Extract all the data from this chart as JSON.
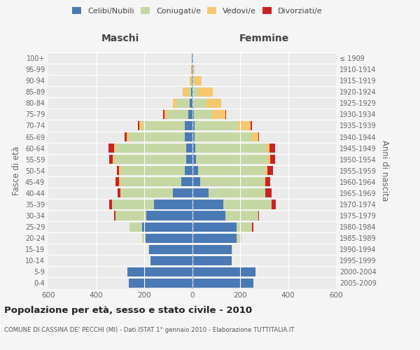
{
  "age_groups": [
    "0-4",
    "5-9",
    "10-14",
    "15-19",
    "20-24",
    "25-29",
    "30-34",
    "35-39",
    "40-44",
    "45-49",
    "50-54",
    "55-59",
    "60-64",
    "65-69",
    "70-74",
    "75-79",
    "80-84",
    "85-89",
    "90-94",
    "95-99",
    "100+"
  ],
  "birth_years": [
    "2005-2009",
    "2000-2004",
    "1995-1999",
    "1990-1994",
    "1985-1989",
    "1980-1984",
    "1975-1979",
    "1970-1974",
    "1965-1969",
    "1960-1964",
    "1955-1959",
    "1950-1954",
    "1945-1949",
    "1940-1944",
    "1935-1939",
    "1930-1934",
    "1925-1929",
    "1920-1924",
    "1915-1919",
    "1910-1914",
    "≤ 1909"
  ],
  "colors": {
    "celibi": "#4a7ab5",
    "coniugati": "#c5d8a4",
    "vedovi": "#f5c86e",
    "divorziati": "#cc2222"
  },
  "maschi": {
    "celibi": [
      265,
      270,
      175,
      180,
      195,
      210,
      190,
      160,
      80,
      45,
      30,
      25,
      25,
      30,
      30,
      15,
      10,
      3,
      2,
      2,
      2
    ],
    "coniugati": [
      0,
      0,
      0,
      2,
      15,
      50,
      130,
      175,
      220,
      255,
      270,
      300,
      295,
      235,
      175,
      90,
      55,
      10,
      3,
      0,
      0
    ],
    "vedovi": [
      0,
      0,
      0,
      0,
      0,
      0,
      0,
      0,
      0,
      5,
      5,
      5,
      5,
      8,
      15,
      10,
      15,
      25,
      5,
      2,
      0
    ],
    "divorziati": [
      0,
      0,
      0,
      0,
      0,
      0,
      5,
      10,
      10,
      15,
      10,
      15,
      25,
      10,
      5,
      5,
      0,
      0,
      0,
      0,
      0
    ]
  },
  "femmine": {
    "celibi": [
      255,
      265,
      165,
      165,
      185,
      185,
      140,
      130,
      70,
      35,
      25,
      15,
      12,
      10,
      10,
      8,
      5,
      5,
      3,
      2,
      2
    ],
    "coniugati": [
      0,
      0,
      0,
      2,
      20,
      65,
      135,
      200,
      235,
      265,
      280,
      300,
      295,
      240,
      180,
      75,
      55,
      20,
      5,
      0,
      0
    ],
    "vedovi": [
      0,
      0,
      0,
      0,
      0,
      0,
      0,
      0,
      0,
      5,
      8,
      10,
      15,
      25,
      55,
      55,
      60,
      60,
      30,
      8,
      2
    ],
    "divorziati": [
      0,
      0,
      0,
      0,
      0,
      5,
      5,
      20,
      25,
      20,
      25,
      20,
      25,
      5,
      5,
      5,
      0,
      0,
      0,
      0,
      0
    ]
  },
  "title": "Popolazione per età, sesso e stato civile - 2010",
  "subtitle": "COMUNE DI CASSINA DE' PECCHI (MI) - Dati ISTAT 1° gennaio 2010 - Elaborazione TUTTITALIA.IT",
  "xlabel_left": "Maschi",
  "xlabel_right": "Femmine",
  "ylabel_left": "Fasce di età",
  "ylabel_right": "Anni di nascita",
  "xlim": 600,
  "background_color": "#f5f5f5",
  "plot_bg": "#ebebeb",
  "grid_color": "#ffffff"
}
